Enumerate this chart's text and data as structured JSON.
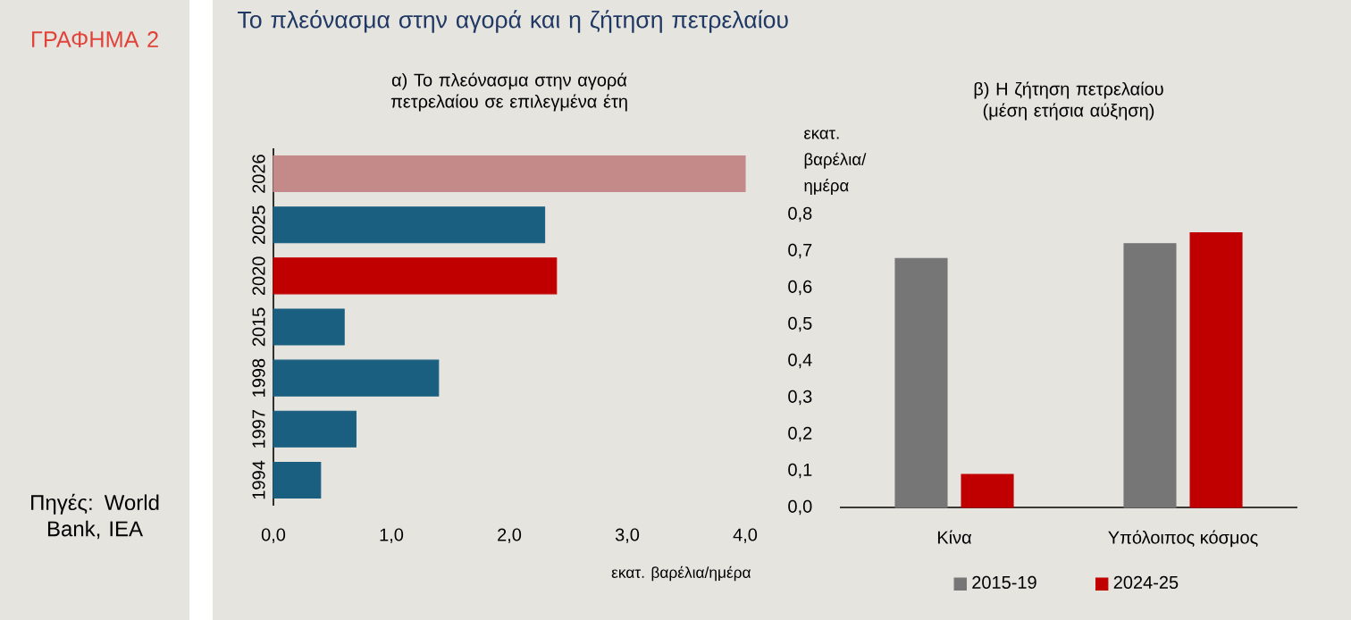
{
  "chart_data": [
    {
      "type": "bar",
      "orientation": "horizontal",
      "title": "α) Το πλεόνασμα στην αγορά πετρελαίου σε επιλεγμένα έτη",
      "xlabel": "εκατ. βαρέλια/ημέρα",
      "categories": [
        "2026",
        "2025",
        "2020",
        "2015",
        "1998",
        "1997",
        "1994"
      ],
      "values": [
        4.0,
        2.3,
        2.4,
        0.6,
        1.4,
        0.7,
        0.4
      ],
      "colors": [
        "#c48a8a",
        "#1a5f80",
        "#c00000",
        "#1a5f80",
        "#1a5f80",
        "#1a5f80",
        "#1a5f80"
      ],
      "xlim": [
        0,
        4
      ],
      "xticks": [
        {
          "value": 0,
          "label": "0,0"
        },
        {
          "value": 1,
          "label": "1,0"
        },
        {
          "value": 2,
          "label": "2,0"
        },
        {
          "value": 3,
          "label": "3,0"
        },
        {
          "value": 4,
          "label": "4,0"
        }
      ],
      "annotations": [
        "ΓΡΑΦΗΜΑ 2",
        "Το πλεόνασμα στην αγορά και η ζήτηση πετρελαίου",
        "Πηγές: World Bank, IEA"
      ]
    },
    {
      "type": "bar",
      "title": "β) Η ζήτηση πετρελαίου (μέση ετήσια αύξηση)",
      "ylabel": "εκατ. βαρέλια/ ημέρα",
      "categories": [
        "Κίνα",
        "Υπόλοιπος κόσμος"
      ],
      "series": [
        {
          "name": "2015-19",
          "color": "#767676",
          "values": [
            0.68,
            0.72
          ]
        },
        {
          "name": "2024-25",
          "color": "#c00000",
          "values": [
            0.09,
            0.75
          ]
        }
      ],
      "ylim": [
        0,
        0.8
      ],
      "yticks": [
        {
          "value": 0,
          "label": "0,0"
        },
        {
          "value": 0.1,
          "label": "0,1"
        },
        {
          "value": 0.2,
          "label": "0,2"
        },
        {
          "value": 0.3,
          "label": "0,3"
        },
        {
          "value": 0.4,
          "label": "0,4"
        },
        {
          "value": 0.5,
          "label": "0,5"
        },
        {
          "value": 0.6,
          "label": "0,6"
        },
        {
          "value": 0.7,
          "label": "0,7"
        },
        {
          "value": 0.8,
          "label": "0,8"
        }
      ],
      "legend": "bottom"
    }
  ]
}
